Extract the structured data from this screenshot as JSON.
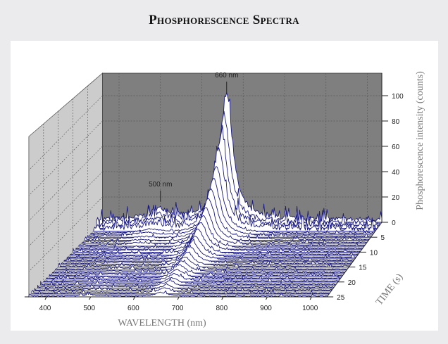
{
  "chart_data": {
    "type": "waterfall-3d",
    "title": "Phosphorescence Spectra",
    "xlabel": "WAVELENGTH (nm)",
    "ylabel": "TIME (s)",
    "zlabel": "Phosphorescence intensity (counts)",
    "x_ticks": [
      400,
      500,
      600,
      700,
      800,
      900,
      1000
    ],
    "y_ticks": [
      5,
      10,
      15,
      20,
      25
    ],
    "z_ticks": [
      0,
      20,
      40,
      60,
      80,
      100
    ],
    "xlim": [
      360,
      1035
    ],
    "ylim": [
      0,
      25
    ],
    "zlim": [
      0,
      110
    ],
    "annotations": [
      {
        "label": "660 nm",
        "x": 660
      },
      {
        "label": "500 nm",
        "x": 500
      }
    ],
    "times": [
      0,
      1,
      2,
      3,
      4,
      5,
      6,
      7,
      8,
      9,
      10,
      11,
      12,
      13,
      14,
      15,
      16,
      17,
      18,
      19,
      20,
      21,
      22,
      23,
      24,
      25
    ],
    "peak_660_intensity": [
      100,
      85,
      72,
      62,
      53,
      46,
      40,
      35,
      30,
      26,
      23,
      20,
      17,
      15,
      13,
      11,
      10,
      9,
      8,
      7,
      6,
      5,
      5,
      4,
      4,
      3
    ],
    "peak_500_intensity": [
      8,
      6,
      5,
      4,
      3,
      3,
      2,
      2,
      2,
      1,
      1,
      1,
      1,
      1,
      1,
      1,
      1,
      1,
      1,
      1,
      1,
      1,
      1,
      1,
      1,
      1
    ],
    "colors": {
      "line": "#1a1a80",
      "back_wall": "#7f7f7f",
      "side_wall": "#cccccc",
      "floor": "#c8c8c8"
    }
  }
}
